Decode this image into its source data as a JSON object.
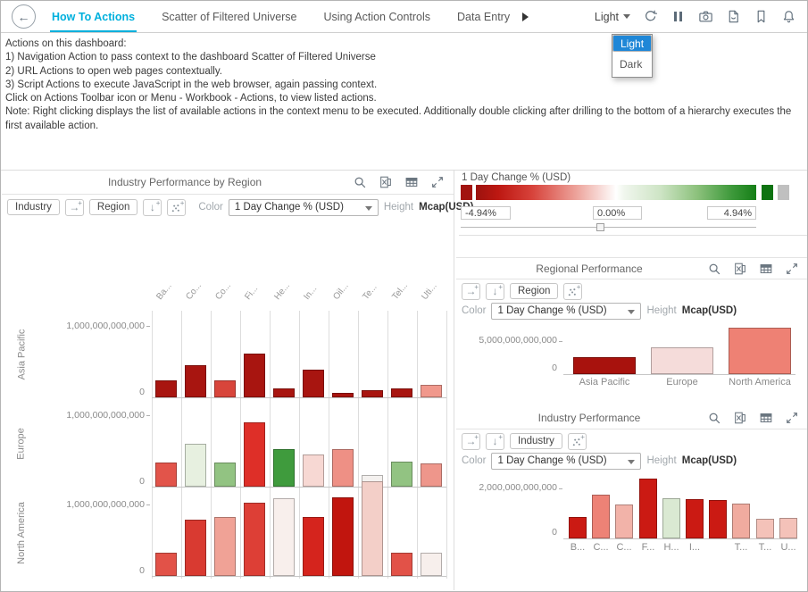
{
  "header": {
    "tabs": [
      {
        "label": "How To Actions",
        "active": true
      },
      {
        "label": "Scatter of Filtered Universe",
        "active": false
      },
      {
        "label": "Using Action Controls",
        "active": false
      },
      {
        "label": "Data Entry",
        "active": false
      }
    ],
    "theme": {
      "value": "Light",
      "menu": [
        "Light",
        "Dark"
      ],
      "selected": "Light",
      "highlight_color": "#1f87d7"
    },
    "active_tab_color": "#00b0dd"
  },
  "description": {
    "lines": [
      "Actions on this dashboard:",
      "1) Navigation Action to pass context to the dashboard Scatter of Filtered Universe",
      "2) URL Actions to open web pages contextually.",
      "3) Script Actions to execute JavaScript in the web browser, again passing context.",
      "Click on Actions Toolbar icon or Menu - Workbook - Actions, to view listed actions.",
      "Note: Right clicking displays the list of available actions in the context menu to be executed.  Additionally double clicking after drilling to the bottom of a hierarchy executes the first available action."
    ]
  },
  "legend": {
    "title": "1 Day Change % (USD)",
    "min": "-4.94%",
    "mid": "0.00%",
    "max": "4.94%",
    "colors": {
      "negative": "#a81510",
      "zero": "#ffffff",
      "positive": "#157f17",
      "na": "#c0c0c0"
    }
  },
  "trellis_panel": {
    "title": "Industry Performance by Region",
    "pills": [
      "Industry",
      "Region"
    ],
    "color_label": "Color",
    "color_value": "1 Day Change % (USD)",
    "height_label": "Height",
    "height_value": "Mcap(USD)"
  },
  "regional_panel": {
    "title": "Regional Performance",
    "pill": "Region",
    "color_label": "Color",
    "color_value": "1 Day Change % (USD)",
    "height_label": "Height",
    "height_value": "Mcap(USD)"
  },
  "industry_panel": {
    "title": "Industry Performance",
    "pill": "Industry",
    "color_label": "Color",
    "color_value": "1 Day Change % (USD)",
    "height_label": "Height",
    "height_value": "Mcap(USD)"
  },
  "chart_data": [
    {
      "type": "bar",
      "title": "Industry Performance by Region",
      "layout": "trellis: Region rows x Industry columns",
      "categories": [
        "Ba...",
        "Co...",
        "Co...",
        "Fi...",
        "He...",
        "In...",
        "Oil...",
        "Te...",
        "Tel...",
        "Uti..."
      ],
      "ylabel": "Mcap(USD)",
      "ytick_value": 1000000000000,
      "ytick_labels": [
        "1,000,000,000,000",
        "0"
      ],
      "series": [
        {
          "name": "Asia Pacific",
          "values": [
            240000000000,
            450000000000,
            240000000000,
            610000000000,
            120000000000,
            390000000000,
            60000000000,
            100000000000,
            130000000000,
            170000000000
          ],
          "colors": [
            "#a81510",
            "#a81510",
            "#d8453b",
            "#a81510",
            "#a81510",
            "#a81510",
            "#a81510",
            "#a81510",
            "#a81510",
            "#f0988c"
          ]
        },
        {
          "name": "Europe",
          "values": [
            340000000000,
            600000000000,
            340000000000,
            900000000000,
            520000000000,
            450000000000,
            520000000000,
            160000000000,
            350000000000,
            320000000000
          ],
          "colors": [
            "#e2544a",
            "#e7f0e0",
            "#92c382",
            "#de2f28",
            "#3f9b3d",
            "#f7d8d3",
            "#ee9085",
            "#f4f1ef",
            "#92c382",
            "#ee968b"
          ]
        },
        {
          "name": "North America",
          "values": [
            320000000000,
            790000000000,
            830000000000,
            1030000000000,
            1090000000000,
            830000000000,
            1100000000000,
            1320000000000,
            320000000000,
            320000000000
          ],
          "colors": [
            "#e25248",
            "#d93a31",
            "#f0a296",
            "#dd3f36",
            "#f8efec",
            "#d5241d",
            "#c1150e",
            "#f3cfc8",
            "#e25248",
            "#f7efec"
          ]
        }
      ]
    },
    {
      "type": "bar",
      "title": "Regional Performance",
      "categories": [
        "Asia Pacific",
        "Europe",
        "North America"
      ],
      "values": [
        2500000000000,
        4000000000000,
        7000000000000
      ],
      "colors": [
        "#a8120d",
        "#f5dcda",
        "#ee8174"
      ],
      "ylabel": "Mcap(USD)",
      "ytick_value": 5000000000000,
      "ytick_labels": [
        "5,000,000,000,000",
        "0"
      ]
    },
    {
      "type": "bar",
      "title": "Industry Performance",
      "categories": [
        "B...",
        "C...",
        "C...",
        "F...",
        "H...",
        "I...",
        "",
        "T...",
        "T...",
        "U..."
      ],
      "values": [
        850000000000,
        1750000000000,
        1360000000000,
        2400000000000,
        1600000000000,
        1570000000000,
        1540000000000,
        1400000000000,
        790000000000,
        820000000000
      ],
      "colors": [
        "#cb1a13",
        "#ed8276",
        "#f2b3a9",
        "#cb1a13",
        "#dae9d2",
        "#cb1a13",
        "#cb1a13",
        "#f0ab9f",
        "#f4c2b9",
        "#f4c2b9"
      ],
      "ylabel": "Mcap(USD)",
      "ytick_value": 2000000000000,
      "ytick_labels": [
        "2,000,000,000,000",
        "0"
      ]
    }
  ]
}
